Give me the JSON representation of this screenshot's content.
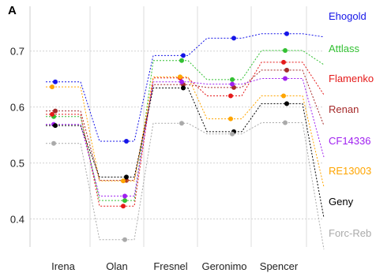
{
  "chart_data": {
    "type": "line",
    "panel_label": "A",
    "categories": [
      "Irena",
      "Olan",
      "Fresnel",
      "Geronimo",
      "Spencer"
    ],
    "ylim": [
      0.35,
      0.78
    ],
    "yticks": [
      0.4,
      0.5,
      0.6,
      0.7
    ],
    "ytick_labels": [
      "0.4",
      "0.5",
      "0.6",
      "0.7"
    ],
    "grid": true,
    "legend_placement": "right",
    "series": [
      {
        "name": "Ehogold",
        "color": "#1515e8",
        "values": [
          0.645,
          0.539,
          0.692,
          0.723,
          0.731
        ]
      },
      {
        "name": "Attlass",
        "color": "#33c033",
        "values": [
          0.583,
          0.433,
          0.683,
          0.649,
          0.701
        ]
      },
      {
        "name": "Flamenko",
        "color": "#e51a1a",
        "values": [
          0.587,
          0.423,
          0.652,
          0.62,
          0.68
        ]
      },
      {
        "name": "Renan",
        "color": "#a52a2a",
        "values": [
          0.593,
          0.469,
          0.64,
          0.635,
          0.666
        ]
      },
      {
        "name": "CF14336",
        "color": "#a020f0",
        "values": [
          0.569,
          0.441,
          0.645,
          0.641,
          0.651
        ]
      },
      {
        "name": "RE13003",
        "color": "#ffa500",
        "values": [
          0.636,
          0.468,
          0.654,
          0.579,
          0.62
        ]
      },
      {
        "name": "Geny",
        "color": "#000000",
        "values": [
          0.567,
          0.475,
          0.634,
          0.556,
          0.606
        ]
      },
      {
        "name": "Forc-Reb",
        "color": "#aaaaaa",
        "values": [
          0.535,
          0.363,
          0.571,
          0.552,
          0.572
        ]
      }
    ]
  }
}
